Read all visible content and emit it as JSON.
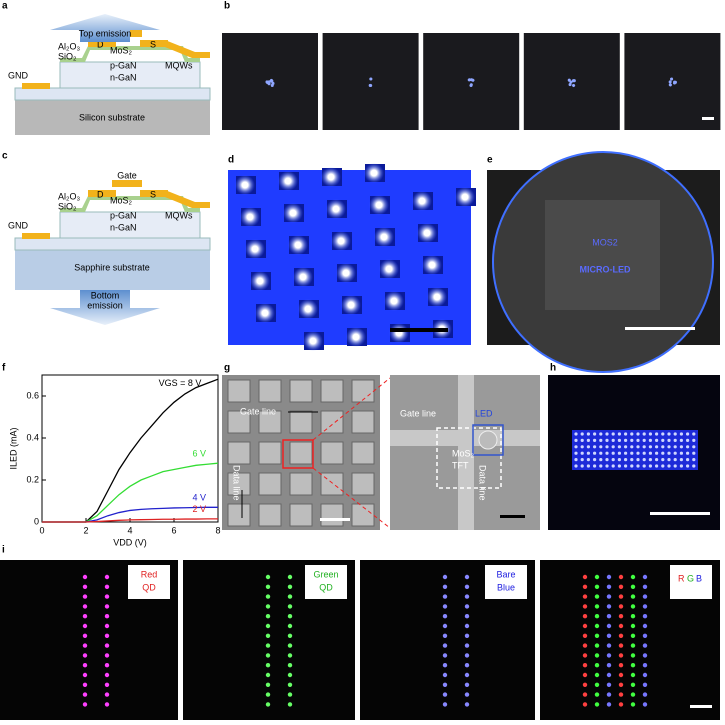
{
  "panels": {
    "a": {
      "label": "a",
      "arrow": "Top emission",
      "gate": "Gate",
      "drain": "D",
      "source": "S",
      "al2o3": "Al₂O₃",
      "sio2": "SiO₂",
      "mos2": "MoS₂",
      "pgan": "p-GaN",
      "ngan": "n-GaN",
      "mqws": "MQWs",
      "gnd": "GND",
      "substrate": "Silicon substrate"
    },
    "b": {
      "label": "b",
      "letters": [
        "M",
        "I",
        "C",
        "R",
        "O"
      ]
    },
    "c": {
      "label": "c",
      "gate": "Gate",
      "drain": "D",
      "source": "S",
      "al2o3": "Al₂O₃",
      "sio2": "SiO₂",
      "mos2": "MoS₂",
      "pgan": "p-GaN",
      "ngan": "n-GaN",
      "mqws": "MQWs",
      "gnd": "GND",
      "substrate": "Sapphire substrate",
      "arrow": [
        "Bottom",
        "emission"
      ]
    },
    "d": {
      "label": "d"
    },
    "e": {
      "label": "e",
      "line1": "MOS2",
      "line2": "MICRO-LED"
    },
    "f": {
      "label": "f"
    },
    "g": {
      "label": "g",
      "gate_line_left": "Gate line",
      "data_line_left": "Data line",
      "gate_line_right": "Gate line",
      "led": "LED",
      "tft": [
        "MoS₂",
        "TFT"
      ],
      "data_line_right": "Data line"
    },
    "h": {
      "label": "h"
    },
    "i": {
      "label": "i",
      "panels": [
        [
          "Red",
          "QD"
        ],
        [
          "Green",
          "QD"
        ],
        [
          "Bare",
          "Blue"
        ],
        [
          "R",
          "G",
          "B"
        ]
      ]
    }
  },
  "chart_data": {
    "type": "line",
    "xlabel": "VDD (V)",
    "ylabel": "ILED (mA)",
    "x": [
      0,
      1,
      2,
      2.5,
      3,
      3.5,
      4,
      4.5,
      5,
      5.5,
      6,
      6.5,
      7,
      7.5,
      8
    ],
    "series": [
      {
        "name": "VGS = 8 V",
        "color": "#000000",
        "values": [
          0,
          0,
          0,
          0.05,
          0.15,
          0.25,
          0.33,
          0.4,
          0.46,
          0.52,
          0.57,
          0.61,
          0.64,
          0.66,
          0.68
        ]
      },
      {
        "name": "6 V",
        "color": "#33dd33",
        "values": [
          0,
          0,
          0,
          0.03,
          0.08,
          0.13,
          0.17,
          0.2,
          0.22,
          0.24,
          0.25,
          0.26,
          0.27,
          0.275,
          0.28
        ]
      },
      {
        "name": "4 V",
        "color": "#2222cc",
        "values": [
          0,
          0,
          0,
          0.01,
          0.03,
          0.045,
          0.055,
          0.06,
          0.063,
          0.065,
          0.067,
          0.068,
          0.069,
          0.07,
          0.07
        ]
      },
      {
        "name": "2 V",
        "color": "#dd2222",
        "values": [
          0,
          0,
          0,
          0.002,
          0.005,
          0.008,
          0.01,
          0.011,
          0.012,
          0.013,
          0.013,
          0.014,
          0.014,
          0.015,
          0.015
        ]
      }
    ],
    "xlim": [
      0,
      8
    ],
    "xticks": [
      0,
      2,
      4,
      6,
      8
    ],
    "ylim": [
      0,
      0.7
    ],
    "yticks": [
      0,
      0.2,
      0.4,
      0.6
    ]
  }
}
